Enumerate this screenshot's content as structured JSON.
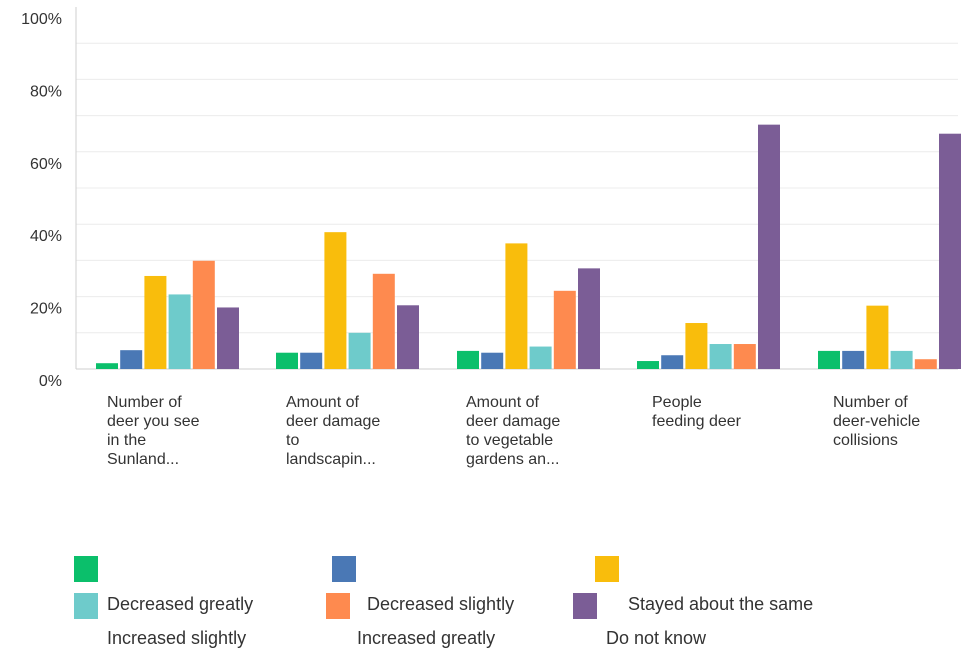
{
  "chart_data": {
    "type": "bar",
    "title": "",
    "xlabel": "",
    "ylabel": "",
    "ylim": [
      0,
      100
    ],
    "yticks": [
      "0%",
      "20%",
      "40%",
      "60%",
      "80%",
      "100%"
    ],
    "grid": true,
    "legend_position": "bottom",
    "categories": [
      "Number of\ndeer you see\nin the\nSunland...",
      "Amount of\ndeer damage\nto\nlandscapin...",
      "Amount of\ndeer damage\nto vegetable\ngardens an...",
      "People\nfeeding deer",
      "Number of\ndeer-vehicle\ncollisions"
    ],
    "series": [
      {
        "name": "Decreased greatly",
        "color": "#0bbf6b",
        "values": [
          1.6,
          4.5,
          5.0,
          2.2,
          5.0
        ]
      },
      {
        "name": "Decreased slightly",
        "color": "#4a78b5",
        "values": [
          5.2,
          4.5,
          4.5,
          3.8,
          5.0
        ]
      },
      {
        "name": "Stayed about the same",
        "color": "#f9bd0c",
        "values": [
          25.7,
          37.8,
          34.7,
          12.7,
          17.5
        ]
      },
      {
        "name": "Increased slightly",
        "color": "#6ecbcb",
        "values": [
          20.6,
          10.0,
          6.2,
          6.9,
          5.0
        ]
      },
      {
        "name": "Increased greatly",
        "color": "#fe8a4f",
        "values": [
          29.9,
          26.3,
          21.6,
          6.9,
          2.7
        ]
      },
      {
        "name": "Do not know",
        "color": "#7b5d96",
        "values": [
          17.0,
          17.6,
          27.8,
          67.5,
          65.0
        ]
      }
    ]
  }
}
